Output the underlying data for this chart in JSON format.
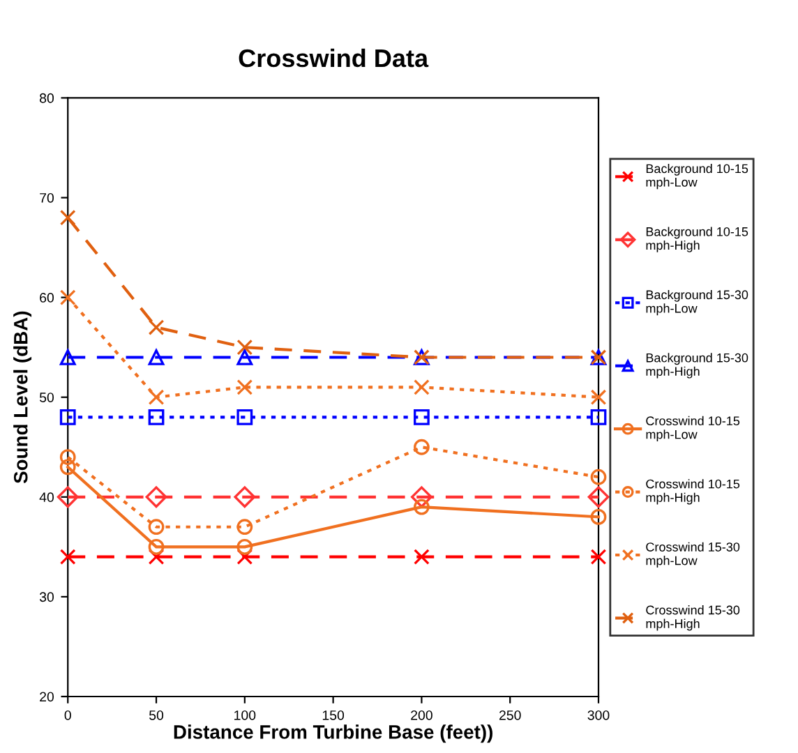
{
  "chart_data": {
    "type": "line",
    "title": "Crosswind Data",
    "xlabel": "Distance From Turbine Base (feet))",
    "ylabel": "Sound Level (dBA)",
    "x": [
      0,
      50,
      100,
      200,
      300
    ],
    "series": [
      {
        "name": "Background 10-15 mph-Low",
        "color": "#ff0000",
        "marker": "cross",
        "line_style": "dashed",
        "values": [
          34,
          34,
          34,
          34,
          34
        ]
      },
      {
        "name": "Background 10-15 mph-High",
        "color": "#ff3333",
        "marker": "diamond",
        "line_style": "dashed",
        "values": [
          40,
          40,
          40,
          40,
          40
        ]
      },
      {
        "name": "Background 15-30 mph-Low",
        "color": "#0000ff",
        "marker": "square",
        "line_style": "dotted",
        "values": [
          48,
          48,
          48,
          48,
          48
        ]
      },
      {
        "name": "Background 15-30 mph-High",
        "color": "#0000ff",
        "marker": "triangle",
        "line_style": "dashed",
        "values": [
          54,
          54,
          54,
          54,
          54
        ]
      },
      {
        "name": "Crosswind 10-15 mph-Low",
        "color": "#f07020",
        "marker": "circle",
        "line_style": "solid",
        "values": [
          43,
          35,
          35,
          39,
          38
        ]
      },
      {
        "name": "Crosswind 10-15 mph-High",
        "color": "#f07020",
        "marker": "circle",
        "line_style": "dotted",
        "values": [
          44,
          37,
          37,
          45,
          42
        ]
      },
      {
        "name": "Crosswind 15-30 mph-Low",
        "color": "#f07020",
        "marker": "cross",
        "line_style": "dotted",
        "values": [
          60,
          50,
          51,
          51,
          50
        ]
      },
      {
        "name": "Crosswind 15-30 mph-High",
        "color": "#e06010",
        "marker": "cross",
        "line_style": "dashed",
        "values": [
          68,
          57,
          55,
          54,
          54
        ]
      }
    ],
    "xlim": [
      0,
      300
    ],
    "xticks": [
      0,
      50,
      100,
      150,
      200,
      250,
      300
    ],
    "ylim": [
      20,
      80
    ],
    "yticks": [
      20,
      30,
      40,
      50,
      60,
      70,
      80
    ],
    "grid": false,
    "legend": "right"
  }
}
